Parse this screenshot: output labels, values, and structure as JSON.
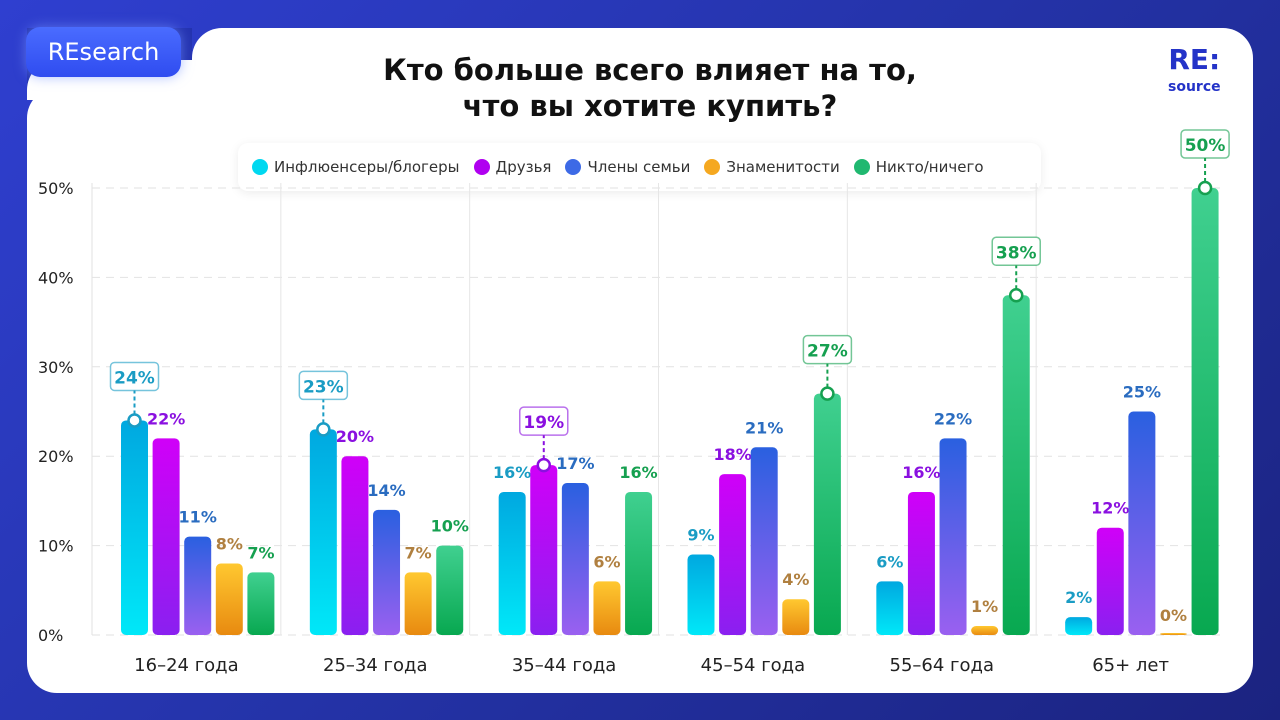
{
  "badge": "REsearch",
  "title_line1": "Кто больше всего влияет на то,",
  "title_line2": "что вы хотите купить?",
  "logo": {
    "top": "RE:",
    "bottom": "source"
  },
  "chart_data": {
    "type": "bar",
    "title": "Кто больше всего влияет на то, что вы хотите купить?",
    "categories": [
      "16–24 года",
      "25–34 года",
      "35–44 года",
      "45–54 года",
      "55–64 года",
      "65+ лет"
    ],
    "series": [
      {
        "name": "Инфлюенсеры/блогеры",
        "color": "#00d8f0",
        "label_color": "#1a9cc4",
        "values": [
          24,
          23,
          16,
          9,
          6,
          2
        ]
      },
      {
        "name": "Друзья",
        "color": "#b000f0",
        "label_color": "#8a10e0",
        "values": [
          22,
          20,
          19,
          18,
          16,
          12
        ]
      },
      {
        "name": "Члены семьи",
        "color": "#3d6ae6",
        "label_color": "#2a6cc0",
        "values": [
          11,
          14,
          17,
          21,
          22,
          25
        ]
      },
      {
        "name": "Знаменитости",
        "color": "#f5a820",
        "label_color": "#b08040",
        "values": [
          8,
          7,
          6,
          4,
          1,
          0
        ]
      },
      {
        "name": "Никто/ничего",
        "color": "#20b870",
        "label_color": "#16a050",
        "values": [
          7,
          10,
          16,
          27,
          38,
          50
        ]
      }
    ],
    "highlighted": [
      [
        0,
        0
      ],
      [
        1,
        0
      ],
      [
        2,
        1
      ],
      [
        3,
        4
      ],
      [
        4,
        4
      ],
      [
        5,
        4
      ]
    ],
    "yticks": [
      "0%",
      "10%",
      "20%",
      "30%",
      "40%",
      "50%"
    ],
    "ylim": [
      0,
      50
    ],
    "grid": true,
    "legend": "top"
  }
}
